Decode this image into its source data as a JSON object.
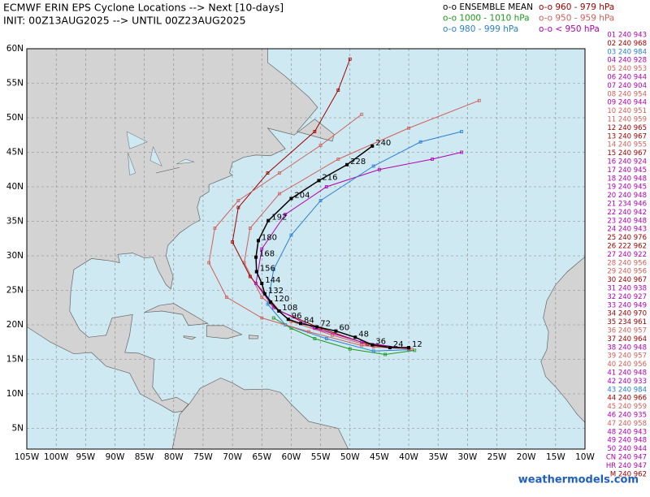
{
  "header": {
    "title": "ECMWF ERIN EPS Cyclone Locations --> Next [10-days]",
    "subtitle": "INIT: 00Z13AUG2025 --> UNTIL 00Z23AUG2025"
  },
  "legend": [
    {
      "text": "o-o ENSEMBLE MEAN",
      "color": "#000000"
    },
    {
      "text": "o-o 960 - 979 hPa",
      "color": "#a00000"
    },
    {
      "text": "o-o 1000 - 1010 hPa",
      "color": "#1a9a1a"
    },
    {
      "text": "o-o 950 - 959 hPa",
      "color": "#d0605a"
    },
    {
      "text": "o-o 980 - 999 hPa",
      "color": "#2a7fd0"
    },
    {
      "text": "o-o < 950 hPa",
      "color": "#b000b0"
    }
  ],
  "map": {
    "xlim": [
      -105,
      -10
    ],
    "ylim": [
      2,
      60
    ],
    "xticks": [
      {
        "value": -105,
        "label": "105W"
      },
      {
        "value": -100,
        "label": "100W"
      },
      {
        "value": -95,
        "label": "95W"
      },
      {
        "value": -90,
        "label": "90W"
      },
      {
        "value": -85,
        "label": "85W"
      },
      {
        "value": -80,
        "label": "80W"
      },
      {
        "value": -75,
        "label": "75W"
      },
      {
        "value": -70,
        "label": "70W"
      },
      {
        "value": -65,
        "label": "65W"
      },
      {
        "value": -60,
        "label": "60W"
      },
      {
        "value": -55,
        "label": "55W"
      },
      {
        "value": -50,
        "label": "50W"
      },
      {
        "value": -45,
        "label": "45W"
      },
      {
        "value": -40,
        "label": "40W"
      },
      {
        "value": -35,
        "label": "35W"
      },
      {
        "value": -30,
        "label": "30W"
      },
      {
        "value": -25,
        "label": "25W"
      },
      {
        "value": -20,
        "label": "20W"
      },
      {
        "value": -15,
        "label": "15W"
      },
      {
        "value": -10,
        "label": "10W"
      }
    ],
    "yticks": [
      {
        "value": 5,
        "label": "5N"
      },
      {
        "value": 10,
        "label": "10N"
      },
      {
        "value": 15,
        "label": "15N"
      },
      {
        "value": 20,
        "label": "20N"
      },
      {
        "value": 25,
        "label": "25N"
      },
      {
        "value": 30,
        "label": "30N"
      },
      {
        "value": 35,
        "label": "35N"
      },
      {
        "value": 40,
        "label": "40N"
      },
      {
        "value": 45,
        "label": "45N"
      },
      {
        "value": 50,
        "label": "50N"
      },
      {
        "value": 55,
        "label": "55N"
      },
      {
        "value": 60,
        "label": "60N"
      }
    ]
  },
  "tracks": [
    {
      "color": "#1a9a1a",
      "lon": [
        -39,
        -44,
        -50,
        -56,
        -60,
        -63
      ],
      "lat": [
        16.3,
        15.7,
        16.5,
        18,
        19.5,
        21
      ]
    },
    {
      "color": "#d0605a",
      "lon": [
        -39.5,
        -46,
        -53,
        -60,
        -65,
        -68,
        -67,
        -62,
        -52,
        -40,
        -28
      ],
      "lat": [
        16.5,
        16.8,
        18.5,
        20.5,
        24,
        29,
        34,
        39,
        44,
        48.5,
        52.5
      ]
    },
    {
      "color": "#a00000",
      "lon": [
        -40,
        -47,
        -55,
        -62,
        -67,
        -70,
        -69,
        -64,
        -56,
        -52,
        -50
      ],
      "lat": [
        16.6,
        17.2,
        19.5,
        22,
        27,
        32,
        37,
        42,
        48,
        54,
        58.5
      ]
    },
    {
      "color": "#b000b0",
      "lon": [
        -40,
        -48,
        -56,
        -63,
        -66,
        -65,
        -61,
        -54,
        -45,
        -36,
        -31
      ],
      "lat": [
        16.5,
        17.5,
        19.5,
        22.5,
        26,
        31,
        36,
        40,
        42.5,
        44,
        45
      ]
    },
    {
      "color": "#2a7fd0",
      "lon": [
        -40,
        -46,
        -54,
        -61,
        -64,
        -63,
        -60,
        -55,
        -46,
        -38,
        -31
      ],
      "lat": [
        16.4,
        16.2,
        18,
        20,
        23,
        28,
        33,
        38,
        43,
        46.5,
        48
      ]
    },
    {
      "color": "#d0605a",
      "lon": [
        -40,
        -48,
        -57,
        -65,
        -71,
        -74,
        -73,
        -69,
        -62,
        -55,
        -48
      ],
      "lat": [
        16.5,
        17,
        19,
        21,
        24,
        29,
        34,
        38,
        42,
        46,
        50.5
      ]
    }
  ],
  "mean_track": {
    "color": "#000000",
    "hours": [
      12,
      24,
      36,
      48,
      60,
      72,
      84,
      96,
      108,
      120,
      132,
      144,
      156,
      168,
      180,
      192,
      204,
      216,
      228,
      240
    ],
    "lon": [
      -40.0,
      -43.2,
      -46.2,
      -49.1,
      -52.4,
      -55.6,
      -58.4,
      -60.5,
      -62.1,
      -63.5,
      -64.5,
      -65.0,
      -65.9,
      -66.0,
      -65.6,
      -63.9,
      -60.0,
      -55.3,
      -50.5,
      -46.2
    ],
    "lat": [
      16.7,
      16.7,
      17.1,
      18.2,
      19.1,
      19.7,
      20.2,
      20.8,
      22.0,
      23.3,
      24.5,
      26.0,
      27.7,
      29.8,
      32.2,
      35.1,
      38.3,
      40.9,
      43.2,
      45.9
    ]
  },
  "members": [
    {
      "label": "01 240 943",
      "color": "#b000b0"
    },
    {
      "label": "02 240 968",
      "color": "#a00000"
    },
    {
      "label": "03 240 984",
      "color": "#2a7fd0"
    },
    {
      "label": "04 240 928",
      "color": "#b000b0"
    },
    {
      "label": "05 240 953",
      "color": "#d0605a"
    },
    {
      "label": "06 240 944",
      "color": "#b000b0"
    },
    {
      "label": "07 240 904",
      "color": "#b000b0"
    },
    {
      "label": "08 240 954",
      "color": "#d0605a"
    },
    {
      "label": "09 240 944",
      "color": "#b000b0"
    },
    {
      "label": "10 240 951",
      "color": "#d0605a"
    },
    {
      "label": "11 240 959",
      "color": "#d0605a"
    },
    {
      "label": "12 240 965",
      "color": "#a00000"
    },
    {
      "label": "13 240 967",
      "color": "#a00000"
    },
    {
      "label": "14 240 955",
      "color": "#d0605a"
    },
    {
      "label": "15 240 967",
      "color": "#a00000"
    },
    {
      "label": "16 240 924",
      "color": "#b000b0"
    },
    {
      "label": "17 240 945",
      "color": "#b000b0"
    },
    {
      "label": "18 240 948",
      "color": "#b000b0"
    },
    {
      "label": "19 240 945",
      "color": "#b000b0"
    },
    {
      "label": "20 240 948",
      "color": "#b000b0"
    },
    {
      "label": "21 234 946",
      "color": "#b000b0"
    },
    {
      "label": "22 240 942",
      "color": "#b000b0"
    },
    {
      "label": "23 240 948",
      "color": "#b000b0"
    },
    {
      "label": "24 240 943",
      "color": "#b000b0"
    },
    {
      "label": "25 240 976",
      "color": "#a00000"
    },
    {
      "label": "26 222 962",
      "color": "#a00000"
    },
    {
      "label": "27 240 922",
      "color": "#b000b0"
    },
    {
      "label": "28 240 956",
      "color": "#d0605a"
    },
    {
      "label": "29 240 956",
      "color": "#d0605a"
    },
    {
      "label": "30 240 967",
      "color": "#a00000"
    },
    {
      "label": "31 240 938",
      "color": "#b000b0"
    },
    {
      "label": "32 240 927",
      "color": "#b000b0"
    },
    {
      "label": "33 240 949",
      "color": "#b000b0"
    },
    {
      "label": "34 240 970",
      "color": "#a00000"
    },
    {
      "label": "35 234 961",
      "color": "#a00000"
    },
    {
      "label": "36 240 957",
      "color": "#d0605a"
    },
    {
      "label": "37 240 964",
      "color": "#a00000"
    },
    {
      "label": "38 240 948",
      "color": "#b000b0"
    },
    {
      "label": "39 240 957",
      "color": "#d0605a"
    },
    {
      "label": "40 240 956",
      "color": "#d0605a"
    },
    {
      "label": "41 240 948",
      "color": "#b000b0"
    },
    {
      "label": "42 240 933",
      "color": "#b000b0"
    },
    {
      "label": "43 240 984",
      "color": "#2a7fd0"
    },
    {
      "label": "44 240 966",
      "color": "#a00000"
    },
    {
      "label": "45 240 959",
      "color": "#d0605a"
    },
    {
      "label": "46 240 935",
      "color": "#b000b0"
    },
    {
      "label": "47 240 958",
      "color": "#d0605a"
    },
    {
      "label": "48 240 943",
      "color": "#b000b0"
    },
    {
      "label": "49 240 948",
      "color": "#b000b0"
    },
    {
      "label": "50 240 944",
      "color": "#b000b0"
    },
    {
      "label": "CN 240 947",
      "color": "#b000b0"
    },
    {
      "label": "HR 240 947",
      "color": "#b000b0"
    },
    {
      "label": "M 240 962",
      "color": "#a00000"
    }
  ],
  "watermark": "weathermodels.com"
}
